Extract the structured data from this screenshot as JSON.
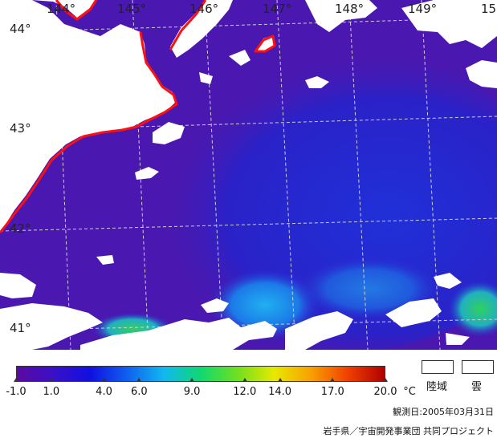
{
  "map": {
    "longitude_labels": [
      "144°",
      "145°",
      "146°",
      "147°",
      "148°",
      "149°",
      "15"
    ],
    "latitude_labels": [
      "44°",
      "43°",
      "42°",
      "41°"
    ],
    "colors": {
      "sea_warm_purple": "#4a18b0",
      "sea_mid_blue": "#2a2ad0",
      "sea_cyan": "#1c8ff0",
      "sea_green": "#29c860",
      "coastline": "#ff1010",
      "cloud_land": "#ffffff",
      "grid": "#cfcfcf"
    }
  },
  "legend": {
    "unit": "°C",
    "tick_labels": [
      "-1.0",
      "1.0",
      "4.0",
      "6.0",
      "9.0",
      "12.0",
      "14.0",
      "17.0",
      "20.0"
    ],
    "tick_values": [
      -1.0,
      1.0,
      4.0,
      6.0,
      9.0,
      12.0,
      14.0,
      17.0,
      20.0
    ],
    "range": [
      -1.0,
      20.0
    ],
    "colormap": [
      "#5a0aa0",
      "#3a10c8",
      "#1010e0",
      "#1060f0",
      "#10b8f0",
      "#10d870",
      "#70e020",
      "#e8e800",
      "#f8a000",
      "#f04000",
      "#b00000"
    ],
    "land_label": "陸域",
    "cloud_label": "雲"
  },
  "observation_date": "観測日:2005年03月31日",
  "credit": "岩手県／宇宙開発事業団 共同プロジェクト"
}
